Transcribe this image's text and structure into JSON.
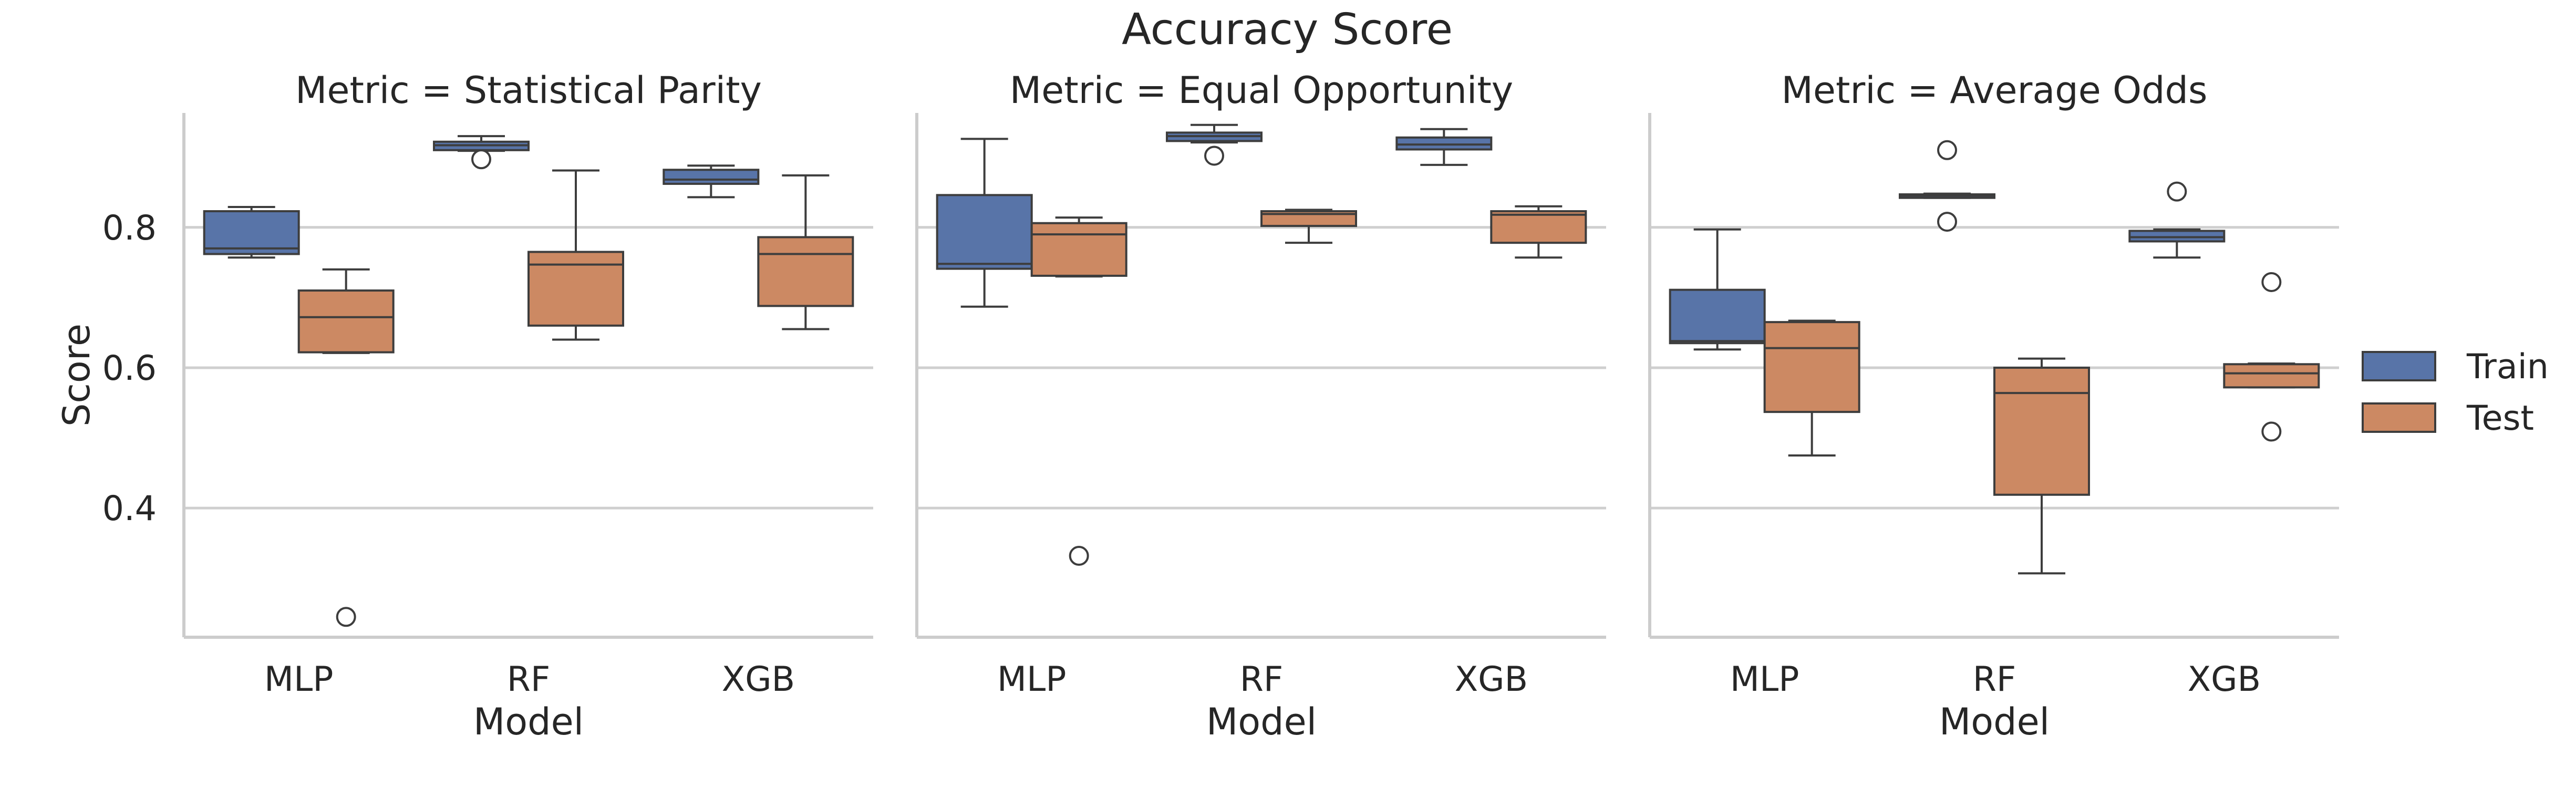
{
  "title": "Accuracy Score",
  "legend": {
    "placement": "right",
    "items": [
      {
        "label": "Train",
        "color": "#5874a8"
      },
      {
        "label": "Test",
        "color": "#cc8963"
      }
    ]
  },
  "chart_data": {
    "type": "box",
    "grid": "horizontal",
    "shared_y": true,
    "ylabel": "Score",
    "ylim": [
      0.216,
      0.963
    ],
    "yticks": [
      0.4,
      0.6,
      0.8
    ],
    "ytick_labels": [
      "0.4",
      "0.6",
      "0.8"
    ],
    "xlabel": "Model",
    "categories": [
      "MLP",
      "RF",
      "XGB"
    ],
    "series_names": [
      "Train",
      "Test"
    ],
    "panels": [
      {
        "title": "Metric = Statistical Parity",
        "boxes": [
          {
            "category": "MLP",
            "series": "Train",
            "whislo": 0.757,
            "q1": 0.762,
            "med": 0.77,
            "q3": 0.823,
            "whishi": 0.829,
            "fliers": []
          },
          {
            "category": "MLP",
            "series": "Test",
            "whislo": 0.621,
            "q1": 0.622,
            "med": 0.672,
            "q3": 0.71,
            "whishi": 0.74,
            "fliers": [
              0.245
            ]
          },
          {
            "category": "RF",
            "series": "Train",
            "whislo": 0.909,
            "q1": 0.91,
            "med": 0.917,
            "q3": 0.922,
            "whishi": 0.93,
            "fliers": [
              0.897
            ]
          },
          {
            "category": "RF",
            "series": "Test",
            "whislo": 0.64,
            "q1": 0.66,
            "med": 0.747,
            "q3": 0.765,
            "whishi": 0.881,
            "fliers": []
          },
          {
            "category": "XGB",
            "series": "Train",
            "whislo": 0.843,
            "q1": 0.862,
            "med": 0.868,
            "q3": 0.882,
            "whishi": 0.888,
            "fliers": []
          },
          {
            "category": "XGB",
            "series": "Test",
            "whislo": 0.655,
            "q1": 0.688,
            "med": 0.762,
            "q3": 0.786,
            "whishi": 0.874,
            "fliers": []
          }
        ]
      },
      {
        "title": "Metric = Equal Opportunity",
        "boxes": [
          {
            "category": "MLP",
            "series": "Train",
            "whislo": 0.687,
            "q1": 0.741,
            "med": 0.748,
            "q3": 0.846,
            "whishi": 0.926,
            "fliers": []
          },
          {
            "category": "MLP",
            "series": "Test",
            "whislo": 0.73,
            "q1": 0.731,
            "med": 0.79,
            "q3": 0.806,
            "whishi": 0.814,
            "fliers": [
              0.332
            ]
          },
          {
            "category": "RF",
            "series": "Train",
            "whislo": 0.921,
            "q1": 0.923,
            "med": 0.93,
            "q3": 0.935,
            "whishi": 0.946,
            "fliers": [
              0.902
            ]
          },
          {
            "category": "RF",
            "series": "Test",
            "whislo": 0.778,
            "q1": 0.802,
            "med": 0.819,
            "q3": 0.823,
            "whishi": 0.825,
            "fliers": []
          },
          {
            "category": "XGB",
            "series": "Train",
            "whislo": 0.889,
            "q1": 0.911,
            "med": 0.918,
            "q3": 0.928,
            "whishi": 0.94,
            "fliers": []
          },
          {
            "category": "XGB",
            "series": "Test",
            "whislo": 0.757,
            "q1": 0.778,
            "med": 0.818,
            "q3": 0.823,
            "whishi": 0.83,
            "fliers": []
          }
        ]
      },
      {
        "title": "Metric = Average Odds",
        "boxes": [
          {
            "category": "MLP",
            "series": "Train",
            "whislo": 0.626,
            "q1": 0.635,
            "med": 0.638,
            "q3": 0.711,
            "whishi": 0.797,
            "fliers": []
          },
          {
            "category": "MLP",
            "series": "Test",
            "whislo": 0.475,
            "q1": 0.537,
            "med": 0.628,
            "q3": 0.665,
            "whishi": 0.667,
            "fliers": []
          },
          {
            "category": "RF",
            "series": "Train",
            "whislo": 0.842,
            "q1": 0.842,
            "med": 0.845,
            "q3": 0.847,
            "whishi": 0.848,
            "fliers": [
              0.91,
              0.808
            ]
          },
          {
            "category": "RF",
            "series": "Test",
            "whislo": 0.307,
            "q1": 0.419,
            "med": 0.564,
            "q3": 0.6,
            "whishi": 0.613,
            "fliers": []
          },
          {
            "category": "XGB",
            "series": "Train",
            "whislo": 0.757,
            "q1": 0.78,
            "med": 0.786,
            "q3": 0.795,
            "whishi": 0.797,
            "fliers": [
              0.851
            ]
          },
          {
            "category": "XGB",
            "series": "Test",
            "whislo": 0.572,
            "q1": 0.572,
            "med": 0.592,
            "q3": 0.605,
            "whishi": 0.606,
            "fliers": [
              0.722,
              0.509
            ]
          }
        ]
      }
    ]
  }
}
